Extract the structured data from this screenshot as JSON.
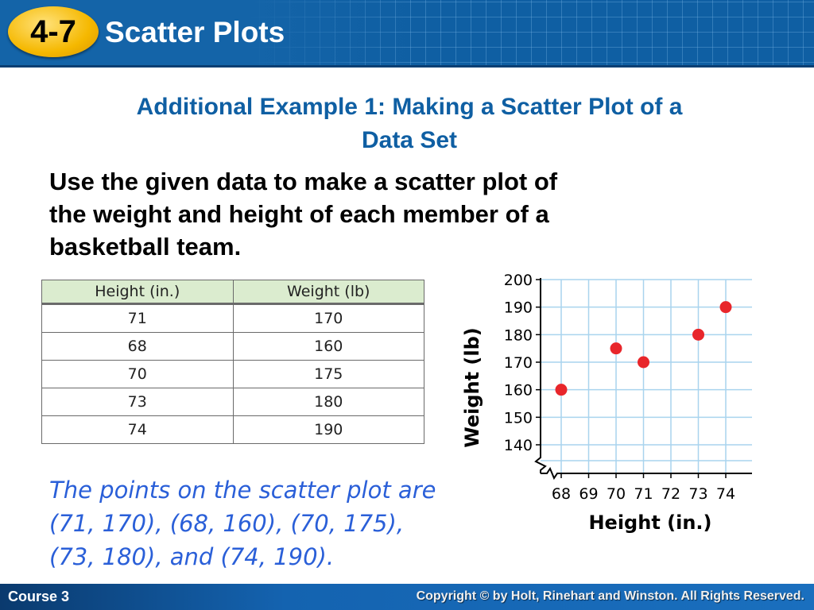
{
  "header": {
    "lesson_number": "4-7",
    "title": "Scatter Plots"
  },
  "example": {
    "title_line1": "Additional Example 1: Making a Scatter Plot of a",
    "title_line2": "Data Set",
    "instruction_line1": "Use the given data to make a scatter plot of",
    "instruction_line2": "the weight and height of each member of a",
    "instruction_line3": "basketball team."
  },
  "table": {
    "headers": [
      "Height (in.)",
      "Weight (lb)"
    ],
    "rows": [
      [
        "71",
        "170"
      ],
      [
        "68",
        "160"
      ],
      [
        "70",
        "175"
      ],
      [
        "73",
        "180"
      ],
      [
        "74",
        "190"
      ]
    ]
  },
  "answer": {
    "line1": "The points on the scatter plot are",
    "line2": "(71, 170), (68, 160), (70, 175),",
    "line3": "(73, 180), and (74, 190)."
  },
  "footer": {
    "course": "Course 3",
    "copyright": "Copyright © by Holt, Rinehart and Winston. All Rights Reserved."
  },
  "colors": {
    "header_blue": "#0f5fa3",
    "badge_gold": "#f5b800",
    "title_blue": "#0f5fa3",
    "answer_blue": "#2a5fd8",
    "point_red": "#e8262b",
    "grid_blue": "#a9d4ee",
    "table_header_green": "#dbeccf"
  },
  "chart_data": {
    "type": "scatter",
    "title": "",
    "xlabel": "Height (in.)",
    "ylabel": "Weight (lb)",
    "x_ticks": [
      "68",
      "69",
      "70",
      "71",
      "72",
      "73",
      "74"
    ],
    "y_ticks": [
      "140",
      "150",
      "160",
      "170",
      "180",
      "190",
      "200"
    ],
    "xlim": [
      68,
      74
    ],
    "ylim": [
      140,
      200
    ],
    "axis_break": "both",
    "grid": true,
    "points": [
      {
        "x": 71,
        "y": 170
      },
      {
        "x": 68,
        "y": 160
      },
      {
        "x": 70,
        "y": 175
      },
      {
        "x": 73,
        "y": 180
      },
      {
        "x": 74,
        "y": 190
      }
    ]
  }
}
